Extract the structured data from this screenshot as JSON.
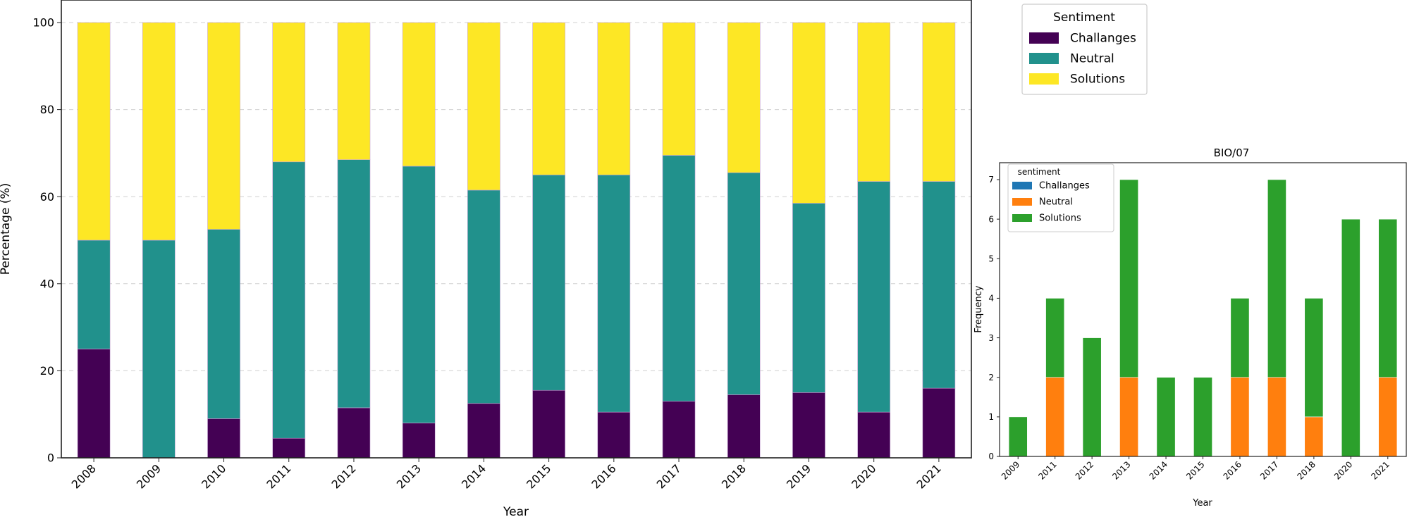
{
  "chart_data": [
    {
      "type": "bar",
      "stacked": true,
      "xlabel": "Year",
      "ylabel": "Percentage (%)",
      "ylim": [
        0,
        100
      ],
      "yticks": [
        0,
        20,
        40,
        60,
        80,
        100
      ],
      "grid": "horizontal dashed",
      "categories": [
        "2008",
        "2009",
        "2010",
        "2011",
        "2012",
        "2013",
        "2014",
        "2015",
        "2016",
        "2017",
        "2018",
        "2019",
        "2020",
        "2021"
      ],
      "legend_title": "Sentiment",
      "legend_position": "outside upper-right",
      "series": [
        {
          "name": "Challanges",
          "color": "#440154",
          "values": [
            25,
            0,
            9,
            4.5,
            11.5,
            8,
            12.5,
            15.5,
            10.5,
            13,
            14.5,
            15,
            10.5,
            16
          ]
        },
        {
          "name": "Neutral",
          "color": "#21918c",
          "values": [
            25,
            50,
            43.5,
            63.5,
            57,
            59,
            49,
            49.5,
            54.5,
            56.5,
            51,
            43.5,
            53,
            47.5
          ]
        },
        {
          "name": "Solutions",
          "color": "#fde725",
          "values": [
            50,
            50,
            47.5,
            32,
            31.5,
            33,
            38.5,
            35,
            35,
            30.5,
            34.5,
            41.5,
            36.5,
            36.5
          ]
        }
      ]
    },
    {
      "type": "bar",
      "stacked": true,
      "title": "BIO/07",
      "xlabel": "Year",
      "ylabel": "Frequency",
      "ylim": [
        0,
        7
      ],
      "yticks": [
        0,
        1,
        2,
        3,
        4,
        5,
        6,
        7
      ],
      "categories": [
        "2009",
        "2011",
        "2012",
        "2013",
        "2014",
        "2015",
        "2016",
        "2017",
        "2018",
        "2020",
        "2021"
      ],
      "legend_title": "sentiment",
      "legend_position": "upper-left",
      "series": [
        {
          "name": "Challanges",
          "color": "#1f77b4",
          "values": [
            0,
            0,
            0,
            0,
            0,
            0,
            0,
            0,
            0,
            0,
            0
          ]
        },
        {
          "name": "Neutral",
          "color": "#ff7f0e",
          "values": [
            0,
            2,
            0,
            2,
            0,
            0,
            2,
            2,
            1,
            0,
            2
          ]
        },
        {
          "name": "Solutions",
          "color": "#2ca02c",
          "values": [
            1,
            2,
            3,
            5,
            2,
            2,
            2,
            5,
            3,
            6,
            4
          ]
        }
      ]
    }
  ]
}
